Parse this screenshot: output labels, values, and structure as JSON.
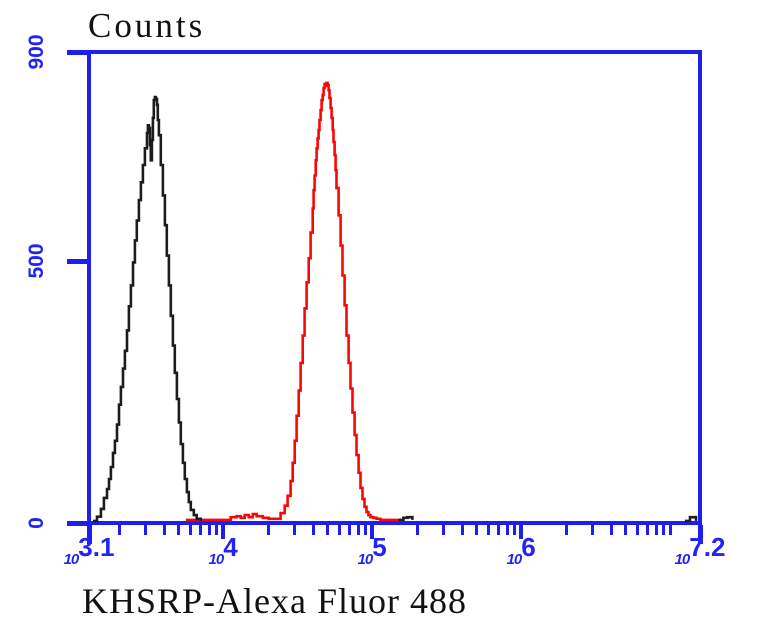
{
  "colors": {
    "axis": "#1e1ef0",
    "axis_text": "#2323f5",
    "title_text": "#111111",
    "black_curve": "#1c1c1c",
    "red_curve": "#fb0505"
  },
  "chart_data": {
    "type": "line",
    "subtype": "flow-cytometry-histogram",
    "title": "Counts",
    "xlabel": "KHSRP-Alexa Fluor 488",
    "grid": false,
    "legend": "none",
    "x_axis": {
      "scale": "log10",
      "min": 3.1,
      "max": 7.2,
      "base": "10",
      "major_exps": [
        4,
        5,
        6
      ],
      "tick_labels": [
        {
          "log": 3.1,
          "text": "3.1"
        },
        {
          "log": 4,
          "text": "4"
        },
        {
          "log": 5,
          "text": "5"
        },
        {
          "log": 6,
          "text": "6"
        },
        {
          "log": 7.2,
          "text": "7.2"
        }
      ]
    },
    "y_axis": {
      "min": 0,
      "max": 900,
      "ticks": [
        {
          "value": 0,
          "label": "0"
        },
        {
          "value": 500,
          "label": "500"
        },
        {
          "value": 900,
          "label": "900"
        }
      ]
    },
    "series": [
      {
        "name": "red_curve",
        "color_key": "red_curve",
        "points": [
          [
            3.75,
            6
          ],
          [
            4.038,
            6
          ],
          [
            4.051,
            11
          ],
          [
            4.091,
            13
          ],
          [
            4.118,
            10
          ],
          [
            4.145,
            15
          ],
          [
            4.172,
            11
          ],
          [
            4.199,
            17
          ],
          [
            4.225,
            13
          ],
          [
            4.266,
            10
          ],
          [
            4.306,
            8
          ],
          [
            4.353,
            8
          ],
          [
            4.386,
            19
          ],
          [
            4.413,
            33
          ],
          [
            4.433,
            52
          ],
          [
            4.453,
            80
          ],
          [
            4.467,
            115
          ],
          [
            4.48,
            157
          ],
          [
            4.493,
            205
          ],
          [
            4.507,
            253
          ],
          [
            4.52,
            306
          ],
          [
            4.534,
            358
          ],
          [
            4.547,
            410
          ],
          [
            4.56,
            460
          ],
          [
            4.574,
            506
          ],
          [
            4.587,
            555
          ],
          [
            4.601,
            601
          ],
          [
            4.607,
            636
          ],
          [
            4.614,
            664
          ],
          [
            4.621,
            693
          ],
          [
            4.627,
            716
          ],
          [
            4.634,
            735
          ],
          [
            4.641,
            751
          ],
          [
            4.647,
            770
          ],
          [
            4.654,
            789
          ],
          [
            4.661,
            808
          ],
          [
            4.668,
            818
          ],
          [
            4.674,
            831
          ],
          [
            4.681,
            839
          ],
          [
            4.688,
            835
          ],
          [
            4.694,
            841
          ],
          [
            4.701,
            837
          ],
          [
            4.708,
            827
          ],
          [
            4.714,
            812
          ],
          [
            4.721,
            793
          ],
          [
            4.728,
            774
          ],
          [
            4.735,
            751
          ],
          [
            4.741,
            728
          ],
          [
            4.748,
            703
          ],
          [
            4.755,
            674
          ],
          [
            4.761,
            640
          ],
          [
            4.775,
            588
          ],
          [
            4.788,
            530
          ],
          [
            4.801,
            473
          ],
          [
            4.815,
            416
          ],
          [
            4.828,
            358
          ],
          [
            4.842,
            306
          ],
          [
            4.855,
            257
          ],
          [
            4.868,
            211
          ],
          [
            4.882,
            168
          ],
          [
            4.895,
            130
          ],
          [
            4.909,
            96
          ],
          [
            4.922,
            67
          ],
          [
            4.935,
            46
          ],
          [
            4.949,
            31
          ],
          [
            4.962,
            21
          ],
          [
            4.975,
            15
          ],
          [
            4.989,
            11
          ],
          [
            5.009,
            10
          ],
          [
            5.029,
            8
          ],
          [
            5.056,
            6
          ],
          [
            5.09,
            6
          ],
          [
            5.123,
            6
          ],
          [
            5.157,
            6
          ],
          [
            5.19,
            6
          ]
        ]
      },
      {
        "name": "black_curve",
        "color_key": "black_curve",
        "points": [
          [
            3.127,
            4
          ],
          [
            3.154,
            12
          ],
          [
            3.18,
            27
          ],
          [
            3.2,
            48
          ],
          [
            3.221,
            65
          ],
          [
            3.234,
            84
          ],
          [
            3.247,
            107
          ],
          [
            3.261,
            134
          ],
          [
            3.274,
            157
          ],
          [
            3.288,
            188
          ],
          [
            3.301,
            226
          ],
          [
            3.314,
            260
          ],
          [
            3.328,
            295
          ],
          [
            3.341,
            329
          ],
          [
            3.355,
            368
          ],
          [
            3.368,
            414
          ],
          [
            3.381,
            454
          ],
          [
            3.395,
            498
          ],
          [
            3.408,
            540
          ],
          [
            3.421,
            578
          ],
          [
            3.435,
            617
          ],
          [
            3.448,
            651
          ],
          [
            3.462,
            684
          ],
          [
            3.475,
            716
          ],
          [
            3.489,
            745
          ],
          [
            3.495,
            760
          ],
          [
            3.502,
            755
          ],
          [
            3.509,
            722
          ],
          [
            3.515,
            693
          ],
          [
            3.522,
            732
          ],
          [
            3.529,
            774
          ],
          [
            3.535,
            808
          ],
          [
            3.542,
            814
          ],
          [
            3.549,
            810
          ],
          [
            3.556,
            799
          ],
          [
            3.562,
            770
          ],
          [
            3.569,
            741
          ],
          [
            3.582,
            684
          ],
          [
            3.596,
            626
          ],
          [
            3.609,
            569
          ],
          [
            3.622,
            511
          ],
          [
            3.636,
            454
          ],
          [
            3.649,
            396
          ],
          [
            3.663,
            339
          ],
          [
            3.676,
            287
          ],
          [
            3.69,
            237
          ],
          [
            3.703,
            192
          ],
          [
            3.716,
            151
          ],
          [
            3.73,
            115
          ],
          [
            3.743,
            84
          ],
          [
            3.757,
            59
          ],
          [
            3.77,
            40
          ],
          [
            3.783,
            25
          ],
          [
            3.803,
            15
          ],
          [
            3.823,
            8
          ],
          [
            3.85,
            4
          ]
        ]
      },
      {
        "name": "black_fragment_right_of_red",
        "color_key": "black_curve",
        "points": [
          [
            5.177,
            6
          ],
          [
            5.21,
            10
          ],
          [
            5.237,
            11
          ],
          [
            5.27,
            6
          ]
        ]
      },
      {
        "name": "black_mark_at_axis_end",
        "color_key": "black_curve",
        "points": [
          [
            7.099,
            4
          ],
          [
            7.133,
            11
          ],
          [
            7.173,
            4
          ]
        ]
      }
    ]
  }
}
